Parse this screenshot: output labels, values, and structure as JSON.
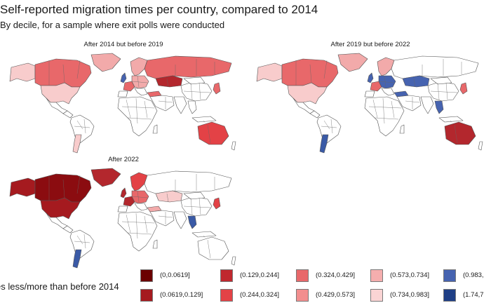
{
  "title": "Self-reported migration times per country, compared to 2014",
  "subtitle": "By decile, for a sample where exit polls were conducted",
  "panels": [
    {
      "title": "After 2014 but before 2019",
      "regions": {
        "canada": "#e8686a",
        "usa": "#f8cccc",
        "greenland": "#f2aaaa",
        "alaska": "#f8cccc",
        "south_america": "#ffffff",
        "argentina": "#f8cccc",
        "scandinavia": "#f2aaaa",
        "uk": "#4663b0",
        "france": "#e8686a",
        "central_europe": "#f2aaaa",
        "russia": "#e8686a",
        "kazakhstan": "#b3272d",
        "turkey": "#e8686a",
        "africa": "#ffffff",
        "middle_east": "#ffffff",
        "india": "#ffffff",
        "china": "#ffffff",
        "se_asia": "#ffffff",
        "japan": "#e8686a",
        "australia": "#e34246"
      }
    },
    {
      "title": "After 2019 but before 2022",
      "regions": {
        "canada": "#e8686a",
        "usa": "#f8cccc",
        "greenland": "#f2aaaa",
        "alaska": "#f8cccc",
        "south_america": "#ffffff",
        "argentina": "#3a5aa6",
        "scandinavia": "#f2aaaa",
        "uk": "#4663b0",
        "france": "#e8686a",
        "central_europe": "#4663b0",
        "russia": "#ffffff",
        "kazakhstan": "#4663b0",
        "turkey": "#4663b0",
        "africa": "#ffffff",
        "middle_east": "#ffffff",
        "india": "#ffffff",
        "china": "#ffffff",
        "se_asia": "#4663b0",
        "japan": "#e8686a",
        "australia": "#b3272d"
      }
    },
    {
      "title": "After 2022",
      "regions": {
        "canada": "#8b0c10",
        "usa": "#a51a1f",
        "greenland": "#b3272d",
        "alaska": "#a51a1f",
        "south_america": "#ffffff",
        "argentina": "#3a5aa6",
        "scandinavia": "#e34246",
        "uk": "#b3272d",
        "france": "#b3272d",
        "central_europe": "#e8686a",
        "russia": "#ffffff",
        "kazakhstan": "#f8cccc",
        "turkey": "#f2aaaa",
        "africa": "#ffffff",
        "middle_east": "#ffffff",
        "india": "#ffffff",
        "china": "#ffffff",
        "se_asia": "#3a5aa6",
        "japan": "#e34246",
        "australia": "#ffffff"
      }
    }
  ],
  "legend": {
    "title": "es less/more than before 2014",
    "items": [
      {
        "label": "(0,0.0619]",
        "color": "#6b0000"
      },
      {
        "label": "(0.0619,0.129]",
        "color": "#a51a1f"
      },
      {
        "label": "(0.129,0.244]",
        "color": "#c0282e"
      },
      {
        "label": "(0.244,0.324]",
        "color": "#e34246"
      },
      {
        "label": "(0.324,0.429]",
        "color": "#e8686a"
      },
      {
        "label": "(0.429,0.573]",
        "color": "#f28e8e"
      },
      {
        "label": "(0.573,0.734]",
        "color": "#f5aeae"
      },
      {
        "label": "(0.734,0.983]",
        "color": "#fad4d4"
      },
      {
        "label": "(0.983,",
        "color": "#4663b0"
      },
      {
        "label": "(1.74,7",
        "color": "#1f3f86"
      }
    ]
  }
}
